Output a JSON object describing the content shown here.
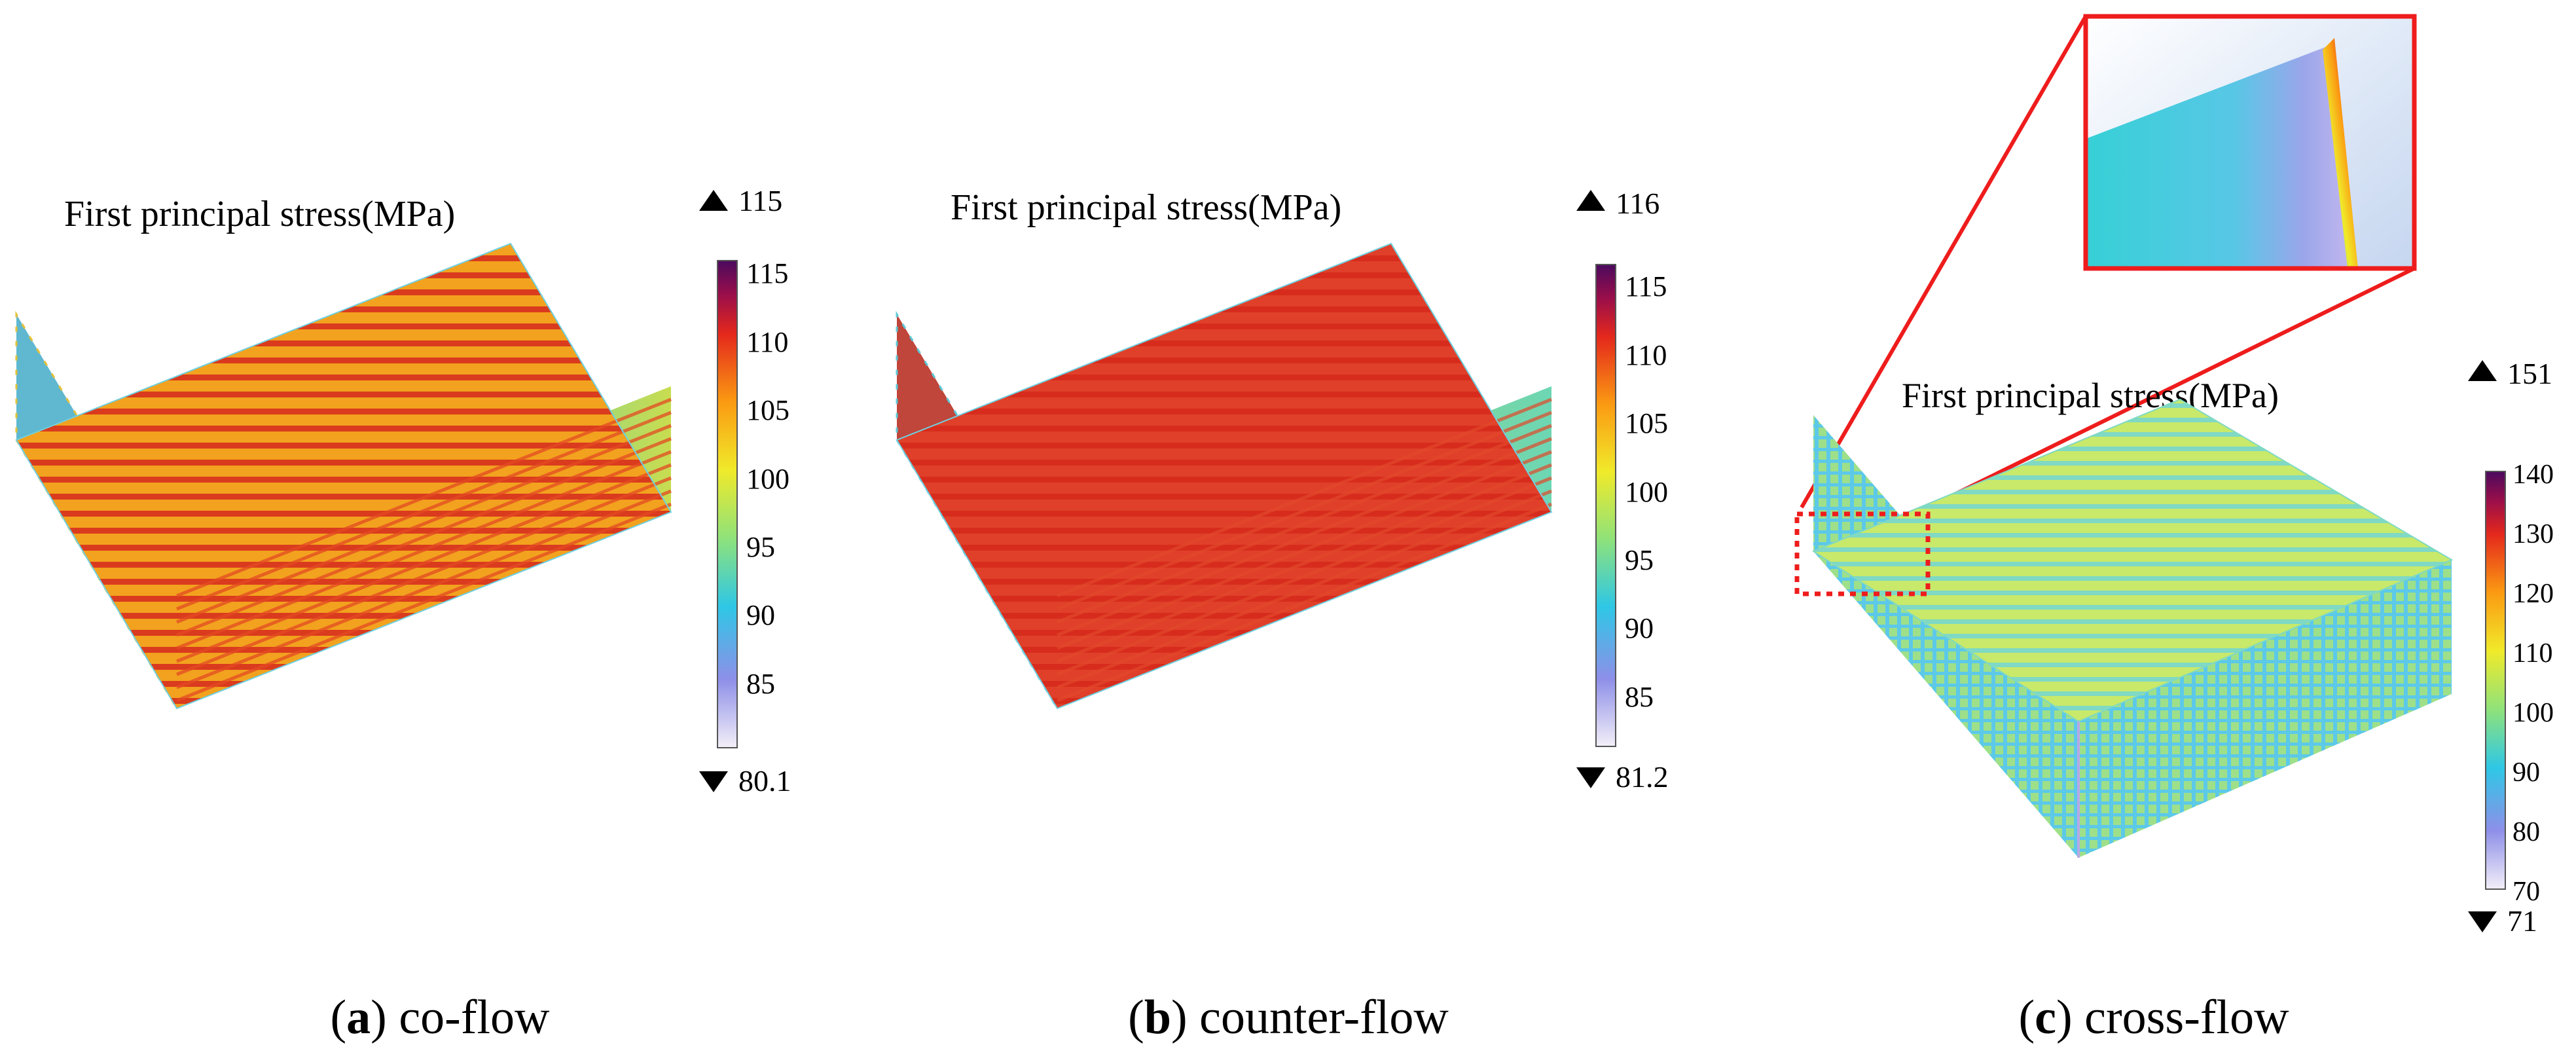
{
  "panels": [
    {
      "id": "a",
      "title": "First principal  stress(MPa)",
      "max_marker": "115",
      "min_marker": "80.1",
      "colorbar_ticks": [
        "115",
        "110",
        "105",
        "100",
        "95",
        "90",
        "85"
      ],
      "caption_letter": "a",
      "caption_text": "co-flow"
    },
    {
      "id": "b",
      "title": "First principal  stress(MPa)",
      "max_marker": "116",
      "min_marker": "81.2",
      "colorbar_ticks": [
        "115",
        "110",
        "105",
        "100",
        "95",
        "90",
        "85"
      ],
      "caption_letter": "b",
      "caption_text": "counter-flow"
    },
    {
      "id": "c",
      "title": "First principal  stress(MPa)",
      "max_marker": "151",
      "min_marker": "71",
      "colorbar_ticks": [
        "140",
        "130",
        "120",
        "110",
        "100",
        "90",
        "80",
        "70"
      ],
      "caption_letter": "c",
      "caption_text": "cross-flow"
    }
  ],
  "colors": {
    "zoom_frame": "#ee1c1c",
    "colormap": [
      "#f3eff8",
      "#8e8fe8",
      "#2ec7e6",
      "#8fe27a",
      "#f0ea2a",
      "#fb9a12",
      "#e4281c",
      "#9a0e4a",
      "#4b0a5e"
    ]
  }
}
